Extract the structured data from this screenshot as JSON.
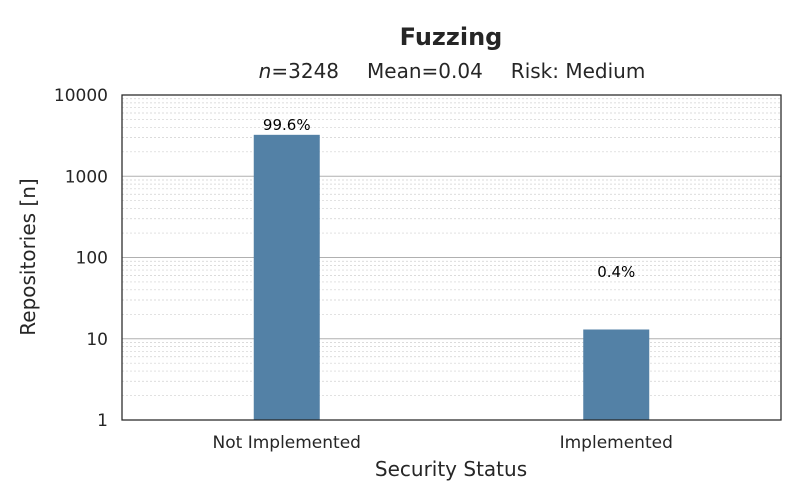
{
  "chart_data": {
    "type": "bar",
    "title": "Fuzzing",
    "subtitle": {
      "n_symbol": "n",
      "n_value": "=3248",
      "mean": "Mean=0.04",
      "risk": "Risk: Medium"
    },
    "xlabel": "Security Status",
    "ylabel": "Repositories [n]",
    "yscale": "log",
    "ylim": [
      1,
      10000
    ],
    "yticks": [
      1,
      10,
      100,
      1000,
      10000
    ],
    "ytick_labels": [
      "1",
      "10",
      "100",
      "1000",
      "10000"
    ],
    "categories": [
      "Not Implemented",
      "Implemented"
    ],
    "values": [
      3235,
      13
    ],
    "bar_labels": [
      "99.6%",
      "0.4%"
    ],
    "grid": true,
    "bar_color": "#5381a6",
    "grid_major_color": "#b0b0b0",
    "grid_minor_color": "#d0d0d0"
  }
}
